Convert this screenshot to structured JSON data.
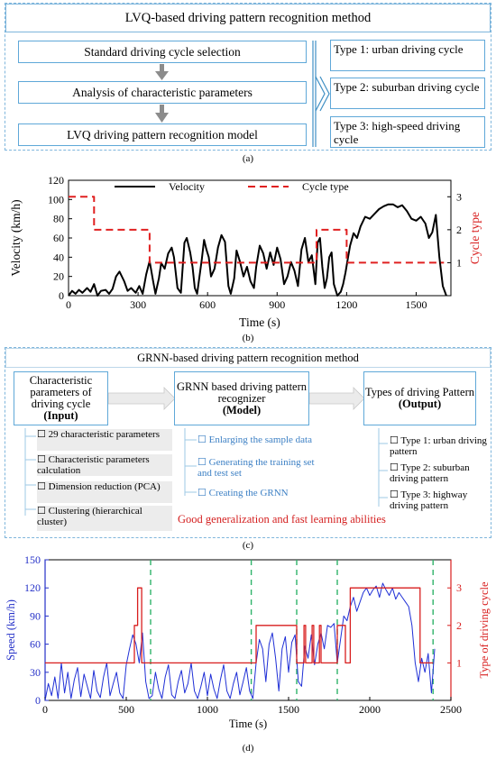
{
  "panel_a": {
    "title": "LVQ-based driving pattern recognition method",
    "steps": [
      "Standard driving cycle selection",
      "Analysis of characteristic parameters",
      "LVQ driving pattern recognition model"
    ],
    "types": [
      "Type 1:  urban driving cycle",
      "Type 2:  suburban driving cycle",
      "Type 3:  high-speed driving cycle"
    ],
    "caption": "(a)"
  },
  "panel_b": {
    "caption": "(b)",
    "chart_data": {
      "type": "line",
      "xlabel": "Time (s)",
      "ylabel": "Velocity (km/h)",
      "y2label": "Cycle type",
      "xlim": [
        0,
        1650
      ],
      "ylim": [
        0,
        120
      ],
      "y2lim": [
        0,
        3.5
      ],
      "xticks": [
        0,
        300,
        600,
        900,
        1200,
        1500
      ],
      "yticks": [
        0,
        20,
        40,
        60,
        80,
        100,
        120
      ],
      "y2ticks": [
        1,
        2,
        3
      ],
      "legend": [
        "Velocity",
        "Cycle type"
      ],
      "series": [
        {
          "name": "Velocity",
          "color": "#000000",
          "axis": "left",
          "x": [
            0,
            15,
            30,
            45,
            60,
            80,
            95,
            110,
            125,
            140,
            160,
            175,
            190,
            205,
            220,
            240,
            255,
            270,
            290,
            305,
            320,
            335,
            350,
            365,
            375,
            390,
            400,
            415,
            430,
            445,
            455,
            470,
            485,
            500,
            510,
            525,
            535,
            545,
            555,
            565,
            575,
            585,
            595,
            605,
            615,
            630,
            645,
            660,
            675,
            690,
            700,
            715,
            725,
            740,
            755,
            770,
            785,
            800,
            810,
            825,
            840,
            855,
            870,
            885,
            900,
            915,
            930,
            945,
            960,
            975,
            990,
            1005,
            1020,
            1035,
            1050,
            1065,
            1075,
            1085,
            1095,
            1105,
            1115,
            1125,
            1135,
            1145,
            1160,
            1175,
            1185,
            1195,
            1205,
            1215,
            1230,
            1245,
            1260,
            1280,
            1300,
            1320,
            1340,
            1360,
            1380,
            1400,
            1420,
            1440,
            1460,
            1480,
            1500,
            1520,
            1540,
            1555,
            1570,
            1585,
            1600,
            1615,
            1630
          ],
          "y": [
            0,
            5,
            2,
            6,
            3,
            8,
            4,
            12,
            0,
            5,
            6,
            2,
            7,
            20,
            25,
            15,
            5,
            8,
            3,
            10,
            2,
            22,
            36,
            15,
            2,
            18,
            34,
            28,
            44,
            50,
            40,
            8,
            3,
            55,
            60,
            45,
            30,
            8,
            2,
            20,
            38,
            58,
            48,
            40,
            20,
            28,
            50,
            63,
            56,
            10,
            2,
            18,
            47,
            35,
            20,
            30,
            15,
            8,
            30,
            52,
            44,
            28,
            45,
            32,
            50,
            38,
            12,
            20,
            35,
            26,
            10,
            48,
            60,
            35,
            42,
            12,
            55,
            60,
            30,
            8,
            18,
            40,
            45,
            12,
            0,
            4,
            12,
            24,
            38,
            52,
            65,
            60,
            72,
            82,
            80,
            85,
            90,
            93,
            95,
            95,
            92,
            94,
            88,
            80,
            78,
            82,
            75,
            60,
            66,
            84,
            40,
            10,
            0
          ]
        },
        {
          "name": "Cycle type",
          "color": "#e02020",
          "axis": "right",
          "x": [
            0,
            110,
            110,
            350,
            350,
            1070,
            1070,
            1200,
            1200,
            1620
          ],
          "y": [
            3,
            3,
            2,
            2,
            1,
            1,
            2,
            2,
            1,
            1
          ]
        }
      ]
    }
  },
  "panel_c": {
    "title": "GRNN-based driving pattern recognition method",
    "input_title": "Characteristic parameters of driving cycle",
    "input_tag": "(Input)",
    "model_title": "GRNN based driving pattern recognizer",
    "model_tag": "(Model)",
    "output_title": "Types of driving Pattern",
    "output_tag": "(Output)",
    "input_items": [
      "29 characteristic parameters",
      "Characteristic parameters calculation",
      "Dimension reduction (PCA)",
      "Clustering (hierarchical cluster)"
    ],
    "model_items": [
      "Enlarging the sample data",
      "Generating the training set and test set",
      "Creating the GRNN"
    ],
    "output_items": [
      "Type 1: urban driving pattern",
      "Type 2: suburban driving pattern",
      "Type 3: highway driving pattern"
    ],
    "note": "Good generalization and fast learning abilities",
    "caption": "(c)"
  },
  "panel_d": {
    "caption": "(d)",
    "chart_data": {
      "type": "line",
      "xlabel": "Time (s)",
      "ylabel": "Speed (km/h)",
      "y2label": "Type of driving cycle",
      "xlim": [
        0,
        2500
      ],
      "ylim": [
        0,
        150
      ],
      "y2lim": [
        0,
        3.75
      ],
      "xticks": [
        0,
        500,
        1000,
        1500,
        2000,
        2500
      ],
      "yticks": [
        0,
        30,
        60,
        90,
        120,
        150
      ],
      "y2ticks": [
        1,
        2,
        3
      ],
      "vlines": [
        650,
        1270,
        1550,
        1800,
        2390
      ],
      "series": [
        {
          "name": "Speed",
          "color": "#1f2fd6",
          "axis": "left",
          "x": [
            0,
            20,
            40,
            60,
            80,
            100,
            120,
            140,
            160,
            180,
            200,
            220,
            240,
            260,
            280,
            300,
            320,
            340,
            360,
            380,
            400,
            420,
            440,
            460,
            480,
            500,
            520,
            540,
            560,
            580,
            600,
            620,
            640,
            660,
            680,
            700,
            720,
            740,
            760,
            780,
            800,
            820,
            840,
            860,
            880,
            900,
            920,
            940,
            960,
            980,
            1000,
            1020,
            1040,
            1060,
            1080,
            1100,
            1120,
            1140,
            1160,
            1180,
            1200,
            1220,
            1240,
            1260,
            1280,
            1300,
            1320,
            1340,
            1360,
            1380,
            1400,
            1420,
            1440,
            1460,
            1480,
            1500,
            1520,
            1540,
            1560,
            1580,
            1600,
            1620,
            1640,
            1660,
            1680,
            1700,
            1720,
            1740,
            1760,
            1780,
            1800,
            1820,
            1840,
            1860,
            1880,
            1900,
            1920,
            1940,
            1960,
            1980,
            2000,
            2020,
            2040,
            2060,
            2080,
            2100,
            2120,
            2140,
            2160,
            2180,
            2200,
            2220,
            2240,
            2260,
            2280,
            2300,
            2320,
            2340,
            2360,
            2380,
            2400
          ],
          "y": [
            0,
            18,
            5,
            25,
            2,
            40,
            8,
            30,
            2,
            22,
            35,
            4,
            28,
            15,
            2,
            32,
            10,
            3,
            25,
            40,
            5,
            18,
            30,
            8,
            2,
            38,
            55,
            70,
            60,
            40,
            72,
            20,
            2,
            5,
            30,
            12,
            2,
            25,
            38,
            6,
            2,
            20,
            32,
            8,
            18,
            40,
            10,
            2,
            15,
            30,
            5,
            28,
            12,
            2,
            22,
            38,
            10,
            2,
            18,
            30,
            6,
            20,
            35,
            10,
            2,
            40,
            65,
            55,
            20,
            60,
            72,
            45,
            10,
            55,
            68,
            30,
            62,
            70,
            20,
            15,
            58,
            45,
            70,
            38,
            60,
            72,
            55,
            80,
            78,
            82,
            40,
            65,
            90,
            85,
            100,
            110,
            95,
            105,
            115,
            120,
            112,
            118,
            122,
            110,
            125,
            118,
            112,
            120,
            108,
            115,
            110,
            105,
            100,
            80,
            40,
            20,
            45,
            30,
            50,
            8,
            55
          ]
        },
        {
          "name": "Type of driving cycle",
          "color": "#d81e1e",
          "axis": "right",
          "x": [
            0,
            550,
            550,
            570,
            570,
            595,
            595,
            1300,
            1300,
            1550,
            1550,
            1595,
            1595,
            1605,
            1605,
            1645,
            1645,
            1655,
            1655,
            1690,
            1690,
            1700,
            1700,
            1800,
            1800,
            1850,
            1850,
            1880,
            1880,
            2310,
            2310,
            2390
          ],
          "y": [
            1,
            1,
            2,
            2,
            3,
            3,
            1,
            1,
            2,
            2,
            1,
            1,
            2,
            2,
            1,
            1,
            2,
            2,
            1,
            1,
            2,
            2,
            1,
            1,
            2,
            2,
            1,
            1,
            3,
            3,
            1,
            1
          ]
        }
      ]
    }
  }
}
